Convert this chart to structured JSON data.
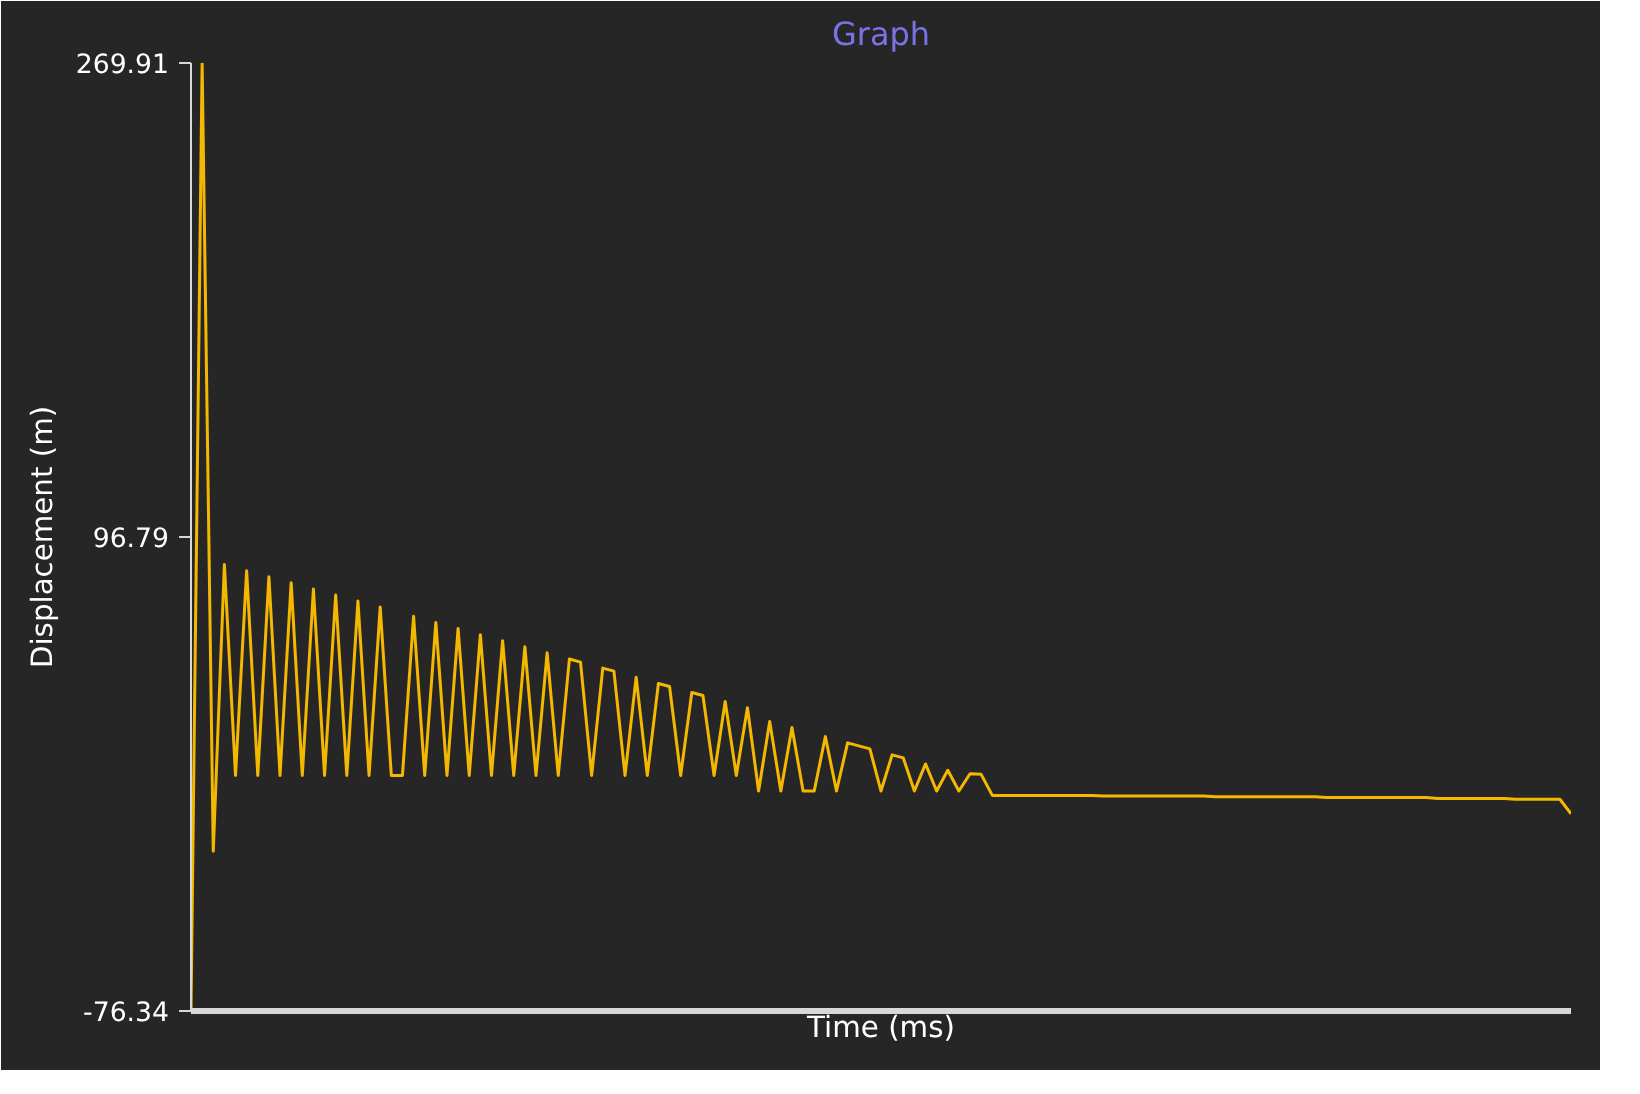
{
  "chart_data": {
    "type": "line",
    "title": "Graph",
    "xlabel": "Time (ms)",
    "ylabel": "Displacement (m)",
    "ylim": [
      -76.34,
      269.91
    ],
    "yticks": [
      -76.34,
      96.79,
      269.91
    ],
    "grid": false,
    "marker": "none",
    "line_style": "solid",
    "categories": [
      null,
      null,
      null,
      null,
      null,
      null,
      null,
      null,
      null,
      null,
      null,
      null,
      null,
      null,
      null,
      null,
      null,
      null,
      null,
      null,
      null,
      null,
      null,
      null,
      null,
      null,
      null,
      null,
      null,
      null,
      null,
      null,
      null,
      null,
      null,
      null,
      null,
      null,
      null,
      null,
      null,
      null,
      null,
      null,
      null,
      null,
      null,
      null,
      null,
      null,
      null,
      null,
      null,
      null,
      null,
      null,
      null,
      null,
      null,
      null,
      null,
      null,
      null,
      null,
      null,
      null,
      null,
      null,
      null,
      null,
      null,
      null,
      null,
      null,
      null,
      null,
      null,
      null,
      null,
      null,
      null,
      null,
      null,
      null,
      null,
      null,
      null,
      null,
      null,
      null,
      null,
      null,
      null,
      null,
      null,
      null,
      null,
      null,
      null,
      null,
      null,
      null,
      null,
      null,
      null,
      null,
      null,
      null,
      null,
      null,
      null,
      null,
      null,
      null,
      null,
      null,
      null,
      null,
      null,
      null,
      null,
      null,
      null,
      null,
      null
    ],
    "series": [
      {
        "color": "#f5b800",
        "values": [
          -76.34,
          269.91,
          -18,
          86.7,
          9.7,
          84.5,
          9.7,
          82.3,
          9.7,
          80.1,
          9.7,
          77.8,
          9.7,
          75.6,
          9.7,
          73.4,
          9.7,
          71.2,
          9.7,
          9.7,
          67.8,
          9.7,
          65.6,
          9.7,
          63.4,
          9.7,
          61.1,
          9.7,
          58.9,
          9.7,
          56.7,
          9.7,
          54.5,
          9.7,
          52.2,
          51.1,
          9.7,
          48.9,
          47.8,
          9.7,
          45.6,
          9.7,
          43.3,
          42.2,
          9.7,
          40.0,
          38.9,
          9.7,
          36.7,
          9.7,
          34.4,
          4.0,
          29.4,
          4.0,
          27.2,
          4.0,
          4.0,
          23.9,
          4.0,
          21.6,
          20.5,
          19.4,
          4.0,
          17.2,
          16.1,
          4.0,
          13.9,
          4.0,
          11.6,
          4.0,
          10.3,
          10.1,
          2.4,
          2.4,
          2.4,
          2.4,
          2.4,
          2.4,
          2.4,
          2.4,
          2.4,
          2.4,
          2.2,
          2.2,
          2.2,
          2.2,
          2.2,
          2.2,
          2.2,
          2.2,
          2.2,
          2.2,
          1.9,
          1.9,
          1.9,
          1.9,
          1.9,
          1.9,
          1.9,
          1.9,
          1.9,
          1.9,
          1.6,
          1.6,
          1.6,
          1.6,
          1.6,
          1.6,
          1.6,
          1.6,
          1.6,
          1.6,
          1.3,
          1.3,
          1.3,
          1.3,
          1.3,
          1.3,
          1.3,
          1.0,
          1.0,
          1.0,
          1.0,
          1.0,
          -4.3
        ]
      }
    ]
  }
}
